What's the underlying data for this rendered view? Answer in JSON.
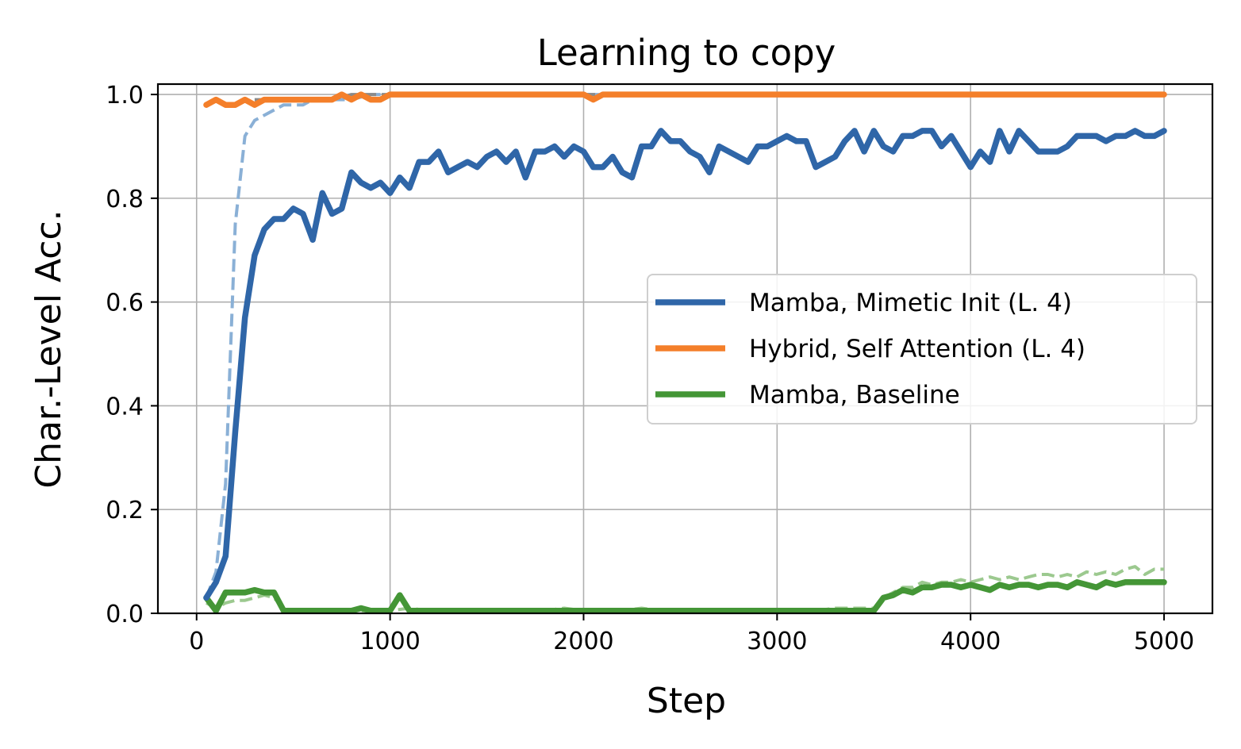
{
  "chart_data": {
    "type": "line",
    "title": "Learning to copy",
    "xlabel": "Step",
    "ylabel": "Char.-Level Acc.",
    "xlim": [
      -200,
      5250
    ],
    "ylim": [
      0,
      1.02
    ],
    "xticks": [
      0,
      1000,
      2000,
      3000,
      4000,
      5000
    ],
    "yticks": [
      0.0,
      0.2,
      0.4,
      0.6,
      0.8,
      1.0
    ],
    "ytick_labels": [
      "0.0",
      "0.2",
      "0.4",
      "0.6",
      "0.8",
      "1.0"
    ],
    "grid": true,
    "legend_position": "center-right",
    "series": [
      {
        "name": "Mamba, Mimetic Init (L. 4)",
        "color": "#2f66a8",
        "style": "solid",
        "x": [
          50,
          100,
          150,
          200,
          250,
          300,
          350,
          400,
          450,
          500,
          550,
          600,
          650,
          700,
          750,
          800,
          850,
          900,
          950,
          1000,
          1050,
          1100,
          1150,
          1200,
          1250,
          1300,
          1350,
          1400,
          1450,
          1500,
          1550,
          1600,
          1650,
          1700,
          1750,
          1800,
          1850,
          1900,
          1950,
          2000,
          2050,
          2100,
          2150,
          2200,
          2250,
          2300,
          2350,
          2400,
          2450,
          2500,
          2550,
          2600,
          2650,
          2700,
          2750,
          2800,
          2850,
          2900,
          2950,
          3000,
          3050,
          3100,
          3150,
          3200,
          3250,
          3300,
          3350,
          3400,
          3450,
          3500,
          3550,
          3600,
          3650,
          3700,
          3750,
          3800,
          3850,
          3900,
          3950,
          4000,
          4050,
          4100,
          4150,
          4200,
          4250,
          4300,
          4350,
          4400,
          4450,
          4500,
          4550,
          4600,
          4650,
          4700,
          4750,
          4800,
          4850,
          4900,
          4950,
          5000
        ],
        "values": [
          0.03,
          0.06,
          0.11,
          0.35,
          0.57,
          0.69,
          0.74,
          0.76,
          0.76,
          0.78,
          0.77,
          0.72,
          0.81,
          0.77,
          0.78,
          0.85,
          0.83,
          0.82,
          0.83,
          0.81,
          0.84,
          0.82,
          0.87,
          0.87,
          0.89,
          0.85,
          0.86,
          0.87,
          0.86,
          0.88,
          0.89,
          0.87,
          0.89,
          0.84,
          0.89,
          0.89,
          0.9,
          0.88,
          0.9,
          0.89,
          0.86,
          0.86,
          0.88,
          0.85,
          0.84,
          0.9,
          0.9,
          0.93,
          0.91,
          0.91,
          0.89,
          0.88,
          0.85,
          0.9,
          0.89,
          0.88,
          0.87,
          0.9,
          0.9,
          0.91,
          0.92,
          0.91,
          0.91,
          0.86,
          0.87,
          0.88,
          0.91,
          0.93,
          0.89,
          0.93,
          0.9,
          0.89,
          0.92,
          0.92,
          0.93,
          0.93,
          0.9,
          0.92,
          0.89,
          0.86,
          0.89,
          0.87,
          0.93,
          0.89,
          0.93,
          0.91,
          0.89,
          0.89,
          0.89,
          0.9,
          0.92,
          0.92,
          0.92,
          0.91,
          0.92,
          0.92,
          0.93,
          0.92,
          0.92,
          0.93
        ]
      },
      {
        "name": "Hybrid, Self Attention (L. 4)",
        "color": "#f47f2a",
        "style": "solid",
        "x": [
          50,
          100,
          150,
          200,
          250,
          300,
          350,
          400,
          450,
          500,
          550,
          600,
          650,
          700,
          750,
          800,
          850,
          900,
          950,
          1000,
          1050,
          1100,
          1150,
          1200,
          1250,
          1300,
          1350,
          1400,
          1450,
          1500,
          1550,
          1600,
          1650,
          1700,
          1750,
          1800,
          1850,
          1900,
          1950,
          2000,
          2050,
          2100,
          2150,
          2200,
          2250,
          2300,
          2350,
          2400,
          2450,
          2500,
          2550,
          2600,
          2650,
          2700,
          2750,
          2800,
          2850,
          2900,
          2950,
          3000,
          3050,
          3100,
          3150,
          3200,
          3250,
          3300,
          3350,
          3400,
          3450,
          3500,
          3550,
          3600,
          3650,
          3700,
          3750,
          3800,
          3850,
          3900,
          3950,
          4000,
          4050,
          4100,
          4150,
          4200,
          4250,
          4300,
          4350,
          4400,
          4450,
          4500,
          4550,
          4600,
          4650,
          4700,
          4750,
          4800,
          4850,
          4900,
          4950,
          5000
        ],
        "values": [
          0.98,
          0.99,
          0.98,
          0.98,
          0.99,
          0.98,
          0.99,
          0.99,
          0.99,
          0.99,
          0.99,
          0.99,
          0.99,
          0.99,
          1.0,
          0.99,
          1.0,
          0.99,
          0.99,
          1.0,
          1.0,
          1.0,
          1.0,
          1.0,
          1.0,
          1.0,
          1.0,
          1.0,
          1.0,
          1.0,
          1.0,
          1.0,
          1.0,
          1.0,
          1.0,
          1.0,
          1.0,
          1.0,
          1.0,
          1.0,
          0.99,
          1.0,
          1.0,
          1.0,
          1.0,
          1.0,
          1.0,
          1.0,
          1.0,
          1.0,
          1.0,
          1.0,
          1.0,
          1.0,
          1.0,
          1.0,
          1.0,
          1.0,
          1.0,
          1.0,
          1.0,
          1.0,
          1.0,
          1.0,
          1.0,
          1.0,
          1.0,
          1.0,
          1.0,
          1.0,
          1.0,
          1.0,
          1.0,
          1.0,
          1.0,
          1.0,
          1.0,
          1.0,
          1.0,
          1.0,
          1.0,
          1.0,
          1.0,
          1.0,
          1.0,
          1.0,
          1.0,
          1.0,
          1.0,
          1.0,
          1.0,
          1.0,
          1.0,
          1.0,
          1.0,
          1.0,
          1.0,
          1.0,
          1.0,
          1.0
        ]
      },
      {
        "name": "Mamba, Baseline",
        "color": "#449636",
        "style": "solid",
        "x": [
          50,
          100,
          150,
          200,
          250,
          300,
          350,
          400,
          450,
          500,
          550,
          600,
          650,
          700,
          750,
          800,
          850,
          900,
          950,
          1000,
          1050,
          1100,
          1150,
          1200,
          1250,
          1300,
          1350,
          1400,
          1450,
          1500,
          1550,
          1600,
          1650,
          1700,
          1750,
          1800,
          1850,
          1900,
          1950,
          2000,
          2050,
          2100,
          2150,
          2200,
          2250,
          2300,
          2350,
          2400,
          2450,
          2500,
          2550,
          2600,
          2650,
          2700,
          2750,
          2800,
          2850,
          2900,
          2950,
          3000,
          3050,
          3100,
          3150,
          3200,
          3250,
          3300,
          3350,
          3400,
          3450,
          3500,
          3550,
          3600,
          3650,
          3700,
          3750,
          3800,
          3850,
          3900,
          3950,
          4000,
          4050,
          4100,
          4150,
          4200,
          4250,
          4300,
          4350,
          4400,
          4450,
          4500,
          4550,
          4600,
          4650,
          4700,
          4750,
          4800,
          4850,
          4900,
          4950,
          5000
        ],
        "values": [
          0.03,
          0.005,
          0.04,
          0.04,
          0.04,
          0.045,
          0.04,
          0.04,
          0.005,
          0.005,
          0.005,
          0.005,
          0.005,
          0.005,
          0.005,
          0.005,
          0.01,
          0.005,
          0.005,
          0.005,
          0.035,
          0.005,
          0.005,
          0.005,
          0.005,
          0.005,
          0.005,
          0.005,
          0.005,
          0.005,
          0.005,
          0.005,
          0.005,
          0.005,
          0.005,
          0.005,
          0.005,
          0.005,
          0.005,
          0.005,
          0.005,
          0.005,
          0.005,
          0.005,
          0.005,
          0.005,
          0.005,
          0.005,
          0.005,
          0.005,
          0.005,
          0.005,
          0.005,
          0.005,
          0.005,
          0.005,
          0.005,
          0.005,
          0.005,
          0.005,
          0.005,
          0.005,
          0.005,
          0.005,
          0.005,
          0.005,
          0.005,
          0.005,
          0.005,
          0.005,
          0.03,
          0.035,
          0.045,
          0.04,
          0.05,
          0.05,
          0.055,
          0.055,
          0.05,
          0.055,
          0.05,
          0.045,
          0.055,
          0.05,
          0.055,
          0.055,
          0.05,
          0.055,
          0.055,
          0.05,
          0.06,
          0.055,
          0.05,
          0.06,
          0.055,
          0.06,
          0.06,
          0.06,
          0.06,
          0.06
        ]
      },
      {
        "color": "#8ab0d6",
        "style": "dashed",
        "x": [
          50,
          100,
          150,
          200,
          250,
          300,
          350,
          400,
          450,
          500,
          550,
          600,
          650,
          700,
          750,
          800,
          900,
          1000,
          1100,
          1200,
          1400,
          1600,
          1800,
          2000,
          2200,
          2400,
          2600,
          2800,
          3000,
          3200,
          3400,
          3600,
          3800,
          4000,
          4200,
          4400,
          4600,
          4800,
          5000
        ],
        "values": [
          0.03,
          0.08,
          0.25,
          0.75,
          0.92,
          0.95,
          0.96,
          0.97,
          0.98,
          0.98,
          0.98,
          0.99,
          0.99,
          0.99,
          0.99,
          0.99,
          1.0,
          1.0,
          1.0,
          1.0,
          1.0,
          1.0,
          1.0,
          1.0,
          1.0,
          1.0,
          1.0,
          1.0,
          1.0,
          1.0,
          1.0,
          1.0,
          1.0,
          1.0,
          1.0,
          1.0,
          1.0,
          1.0,
          1.0
        ]
      },
      {
        "color": "#8a8a8a",
        "style": "dashed",
        "x": [
          300,
          400,
          500,
          600,
          700,
          800,
          900,
          1000,
          1100,
          1200,
          1300,
          1400,
          1500,
          1600,
          1700,
          1800,
          1900,
          2000,
          2100,
          2200,
          2300,
          2400,
          2500,
          2600,
          2700,
          2800,
          2900,
          3000,
          3200,
          3400,
          3600,
          3800,
          4000,
          4200,
          4400,
          4600,
          4800,
          5000
        ],
        "values": [
          0.99,
          0.99,
          0.99,
          0.99,
          0.99,
          1.0,
          1.0,
          1.0,
          1.0,
          1.0,
          1.0,
          1.0,
          1.0,
          1.0,
          1.0,
          1.0,
          1.0,
          1.0,
          1.0,
          1.0,
          1.0,
          1.0,
          1.0,
          1.0,
          1.0,
          1.0,
          1.0,
          1.0,
          1.0,
          1.0,
          1.0,
          1.0,
          1.0,
          1.0,
          1.0,
          1.0,
          1.0,
          1.0
        ]
      },
      {
        "color": "#9cc98f",
        "style": "dashed",
        "x": [
          50,
          100,
          150,
          200,
          250,
          300,
          350,
          400,
          450,
          500,
          600,
          700,
          800,
          900,
          1000,
          1100,
          1200,
          1300,
          1400,
          1500,
          1600,
          1700,
          1800,
          1900,
          2000,
          2100,
          2200,
          2300,
          2400,
          2500,
          2600,
          2700,
          2800,
          2900,
          3000,
          3100,
          3200,
          3300,
          3400,
          3500,
          3550,
          3600,
          3650,
          3700,
          3750,
          3800,
          3850,
          3900,
          3950,
          4000,
          4050,
          4100,
          4150,
          4200,
          4250,
          4300,
          4350,
          4400,
          4450,
          4500,
          4550,
          4600,
          4650,
          4700,
          4750,
          4800,
          4850,
          4900,
          4950,
          5000
        ],
        "values": [
          0.02,
          0.01,
          0.02,
          0.025,
          0.025,
          0.03,
          0.035,
          0.03,
          0.01,
          0.005,
          0.005,
          0.005,
          0.005,
          0.005,
          0.005,
          0.01,
          0.005,
          0.005,
          0.005,
          0.005,
          0.005,
          0.005,
          0.005,
          0.01,
          0.005,
          0.005,
          0.005,
          0.01,
          0.005,
          0.005,
          0.005,
          0.005,
          0.005,
          0.005,
          0.005,
          0.005,
          0.005,
          0.01,
          0.01,
          0.01,
          0.03,
          0.04,
          0.05,
          0.05,
          0.06,
          0.055,
          0.06,
          0.06,
          0.065,
          0.06,
          0.065,
          0.07,
          0.065,
          0.07,
          0.065,
          0.07,
          0.075,
          0.075,
          0.07,
          0.075,
          0.07,
          0.08,
          0.075,
          0.08,
          0.075,
          0.085,
          0.09,
          0.075,
          0.085,
          0.085
        ]
      }
    ]
  }
}
